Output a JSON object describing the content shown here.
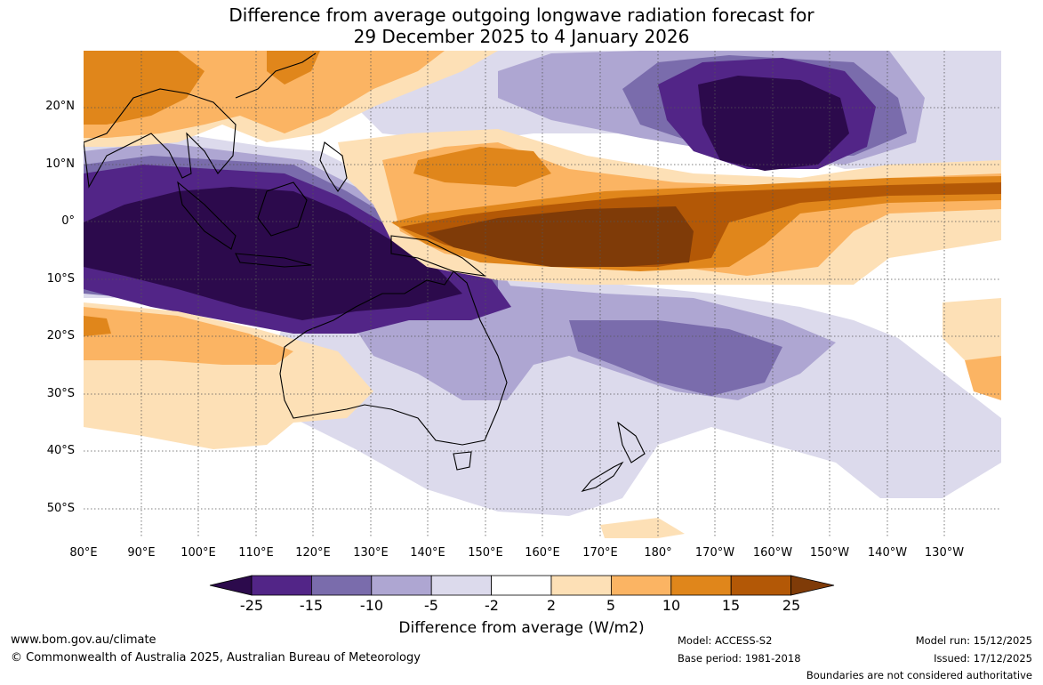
{
  "title": {
    "line1": "Difference from average outgoing longwave radiation forecast for",
    "line2": "29 December 2025 to 4 January 2026"
  },
  "axes": {
    "lat_labels": [
      "20°N",
      "10°N",
      "0°",
      "10°S",
      "20°S",
      "30°S",
      "40°S",
      "50°S"
    ],
    "lon_labels": [
      "80°E",
      "90°E",
      "100°E",
      "110°E",
      "120°E",
      "130°E",
      "140°E",
      "150°E",
      "160°E",
      "170°E",
      "180°",
      "170°W",
      "160°W",
      "150°W",
      "140°W",
      "130°W"
    ]
  },
  "colorbar": {
    "title": "Difference from average (W/m2)",
    "ticks": [
      "-25",
      "-15",
      "-10",
      "-5",
      "-2",
      "2",
      "5",
      "10",
      "15",
      "25"
    ],
    "colors": [
      "#2c0a4c",
      "#522587",
      "#7a6cac",
      "#aea6d2",
      "#dcdaec",
      "#ffffff",
      "#fde0b6",
      "#fbb463",
      "#e0861b",
      "#b35806",
      "#7f3b08"
    ]
  },
  "footer": {
    "website": "www.bom.gov.au/climate",
    "copyright": "© Commonwealth of Australia 2025, Australian Bureau of Meteorology",
    "model": "Model: ACCESS-S2",
    "base_period": "Base period: 1981-2018",
    "model_run": "Model run: 15/12/2025",
    "issued": "Issued: 17/12/2025",
    "boundaries": "Boundaries are not considered authoritative"
  }
}
